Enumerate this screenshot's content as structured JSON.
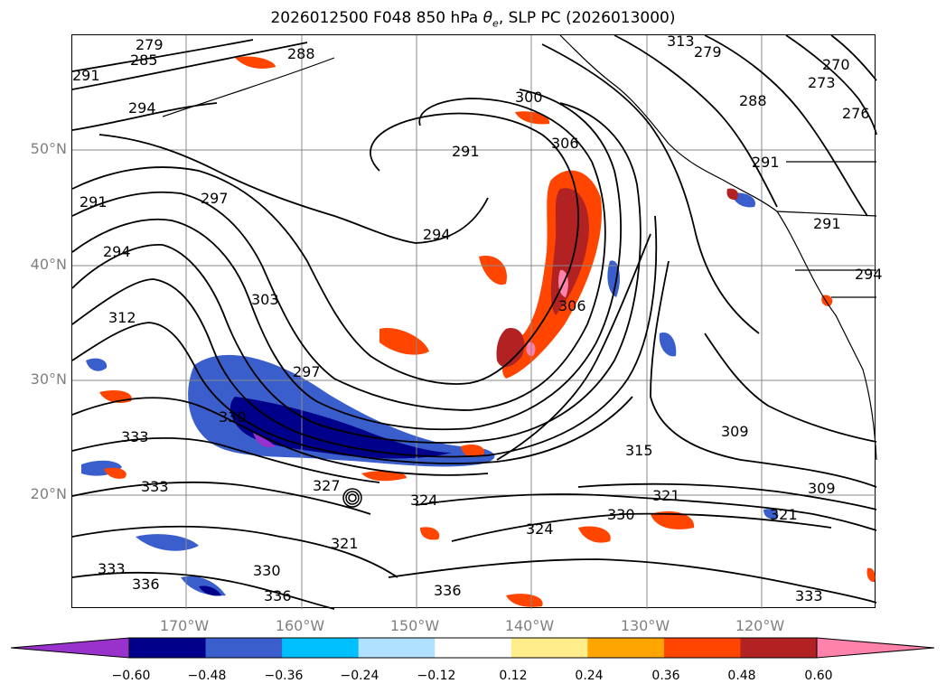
{
  "title": {
    "prefix": "2026012500 F048 850 hPa ",
    "theta": "θ",
    "theta_sub": "e",
    "suffix": ", SLP PC (2026013000)"
  },
  "map": {
    "lat_labels": [
      "50°N",
      "40°N",
      "30°N",
      "20°N"
    ],
    "lon_labels": [
      "170°W",
      "160°W",
      "150°W",
      "140°W",
      "130°W",
      "120°W"
    ],
    "contour_labels": [
      "279",
      "285",
      "288",
      "291",
      "294",
      "297",
      "294",
      "291",
      "294",
      "312",
      "303",
      "297",
      "330",
      "333",
      "333",
      "333",
      "336",
      "330",
      "327",
      "324",
      "321",
      "336",
      "300",
      "306",
      "291",
      "306",
      "315",
      "309",
      "321",
      "309",
      "330",
      "324",
      "321",
      "336",
      "333",
      "270",
      "273",
      "276",
      "288",
      "291",
      "291",
      "294",
      "313",
      "279"
    ]
  },
  "colorbar": {
    "ticks": [
      "−0.60",
      "−0.48",
      "−0.36",
      "−0.24",
      "−0.12",
      "0.12",
      "0.24",
      "0.36",
      "0.48",
      "0.60"
    ],
    "colors": [
      "#9932cc",
      "#00008b",
      "#3a5fcd",
      "#00bfff",
      "#b0e2ff",
      "#ffffff",
      "#ffec8b",
      "#ffa500",
      "#ff4500",
      "#b22222",
      "#ff82ab"
    ]
  }
}
